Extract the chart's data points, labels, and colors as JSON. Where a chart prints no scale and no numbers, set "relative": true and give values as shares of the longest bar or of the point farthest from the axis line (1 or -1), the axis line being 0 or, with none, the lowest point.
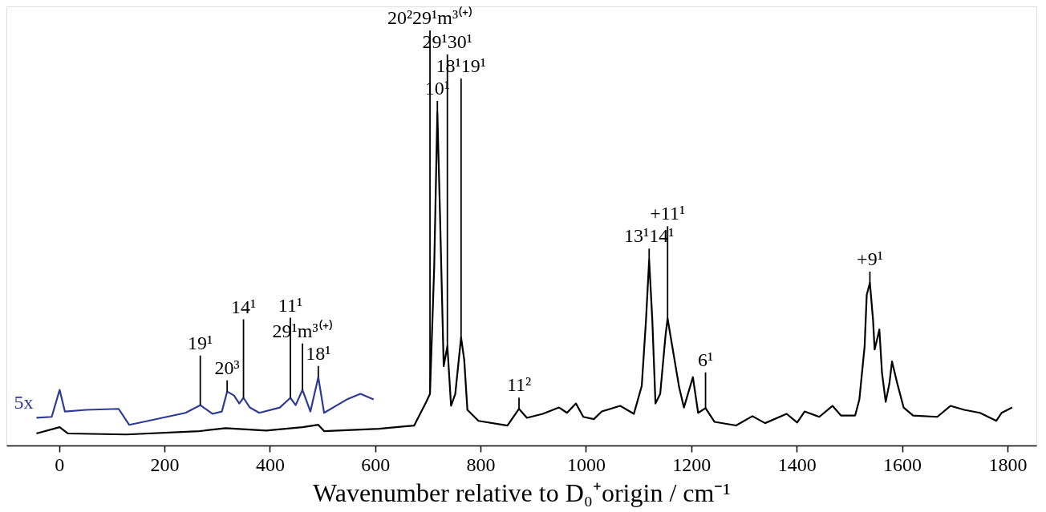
{
  "chart_data": {
    "type": "line",
    "relative": true,
    "xlabel": "Wavenumber relative to D₀⁺origin / cm⁻¹",
    "xlim": [
      -100,
      1855
    ],
    "xticks": [
      0,
      200,
      400,
      600,
      800,
      1000,
      1200,
      1400,
      1600,
      1800
    ],
    "grid": false,
    "marker": "none",
    "line_style": "solid",
    "series": [
      {
        "color": "#000000",
        "x": [
          -43,
          1,
          17,
          128,
          266,
          316,
          393,
          462,
          492,
          503,
          607,
          674,
          697,
          704,
          712,
          718,
          723,
          730,
          737,
          744,
          752,
          763,
          769,
          775,
          796,
          851,
          873,
          888,
          918,
          949,
          964,
          981,
          995,
          1015,
          1030,
          1065,
          1091,
          1106,
          1114,
          1120,
          1126,
          1132,
          1141,
          1151,
          1155,
          1177,
          1186,
          1203,
          1213,
          1227,
          1244,
          1285,
          1316,
          1340,
          1381,
          1401,
          1415,
          1443,
          1468,
          1484,
          1511,
          1519,
          1529,
          1533,
          1539,
          1545,
          1548,
          1553,
          1557,
          1562,
          1569,
          1576,
          1581,
          1591,
          1603,
          1621,
          1667,
          1692,
          1718,
          1748,
          1779,
          1789,
          1809
        ],
        "values": [
          0.036,
          0.055,
          0.036,
          0.033,
          0.043,
          0.052,
          0.045,
          0.055,
          0.062,
          0.043,
          0.05,
          0.06,
          0.131,
          0.155,
          0.536,
          1,
          0.693,
          0.238,
          0.298,
          0.119,
          0.155,
          0.324,
          0.257,
          0.107,
          0.074,
          0.06,
          0.11,
          0.083,
          0.095,
          0.114,
          0.098,
          0.126,
          0.086,
          0.079,
          0.102,
          0.119,
          0.095,
          0.179,
          0.376,
          0.557,
          0.376,
          0.126,
          0.155,
          0.329,
          0.381,
          0.174,
          0.114,
          0.205,
          0.098,
          0.112,
          0.071,
          0.06,
          0.088,
          0.067,
          0.095,
          0.069,
          0.102,
          0.086,
          0.119,
          0.09,
          0.09,
          0.138,
          0.298,
          0.452,
          0.488,
          0.376,
          0.288,
          0.321,
          0.348,
          0.217,
          0.131,
          0.186,
          0.252,
          0.186,
          0.114,
          0.09,
          0.086,
          0.119,
          0.107,
          0.098,
          0.074,
          0.098,
          0.114
        ]
      },
      {
        "name": "5x",
        "color": "#2e3a94",
        "x": [
          -43,
          -14,
          1,
          11,
          52,
          113,
          133,
          169,
          240,
          268,
          291,
          309,
          319,
          332,
          342,
          350,
          362,
          380,
          419,
          439,
          449,
          462,
          477,
          492,
          503,
          546,
          572,
          597
        ],
        "values": [
          0.083,
          0.086,
          0.167,
          0.102,
          0.107,
          0.11,
          0.062,
          0.074,
          0.098,
          0.121,
          0.095,
          0.102,
          0.162,
          0.15,
          0.126,
          0.143,
          0.114,
          0.098,
          0.114,
          0.143,
          0.121,
          0.167,
          0.102,
          0.205,
          0.098,
          0.138,
          0.155,
          0.138
        ]
      }
    ],
    "annotations": [
      {
        "text": "10¹",
        "x": 718,
        "y": 1
      },
      {
        "text": "+9¹",
        "x": 1539,
        "y": 0.488
      },
      {
        "text": "+11¹",
        "x": 1155,
        "y": 0.381
      },
      {
        "text": "29¹30¹",
        "x": 737,
        "y": 0.298
      },
      {
        "text": "18¹19¹",
        "x": 763,
        "y": 0.324
      },
      {
        "text": "13¹14¹",
        "x": 1120,
        "y": 0.557
      },
      {
        "text": "11²",
        "x": 873,
        "y": 0.11
      },
      {
        "text": "6¹",
        "x": 1227,
        "y": 0.112
      },
      {
        "text": "20²29¹m³⁽⁺⁾",
        "x": 704,
        "y": 0.155
      },
      {
        "text": "29¹m³⁽⁺⁾",
        "x": 462,
        "y": 0.167
      },
      {
        "text": "18¹",
        "x": 492,
        "y": 0.205
      },
      {
        "text": "11¹",
        "x": 439,
        "y": 0.143
      },
      {
        "text": "14¹",
        "x": 350,
        "y": 0.143
      },
      {
        "text": "20³",
        "x": 319,
        "y": 0.162
      },
      {
        "text": "19¹",
        "x": 268,
        "y": 0.121
      }
    ]
  }
}
